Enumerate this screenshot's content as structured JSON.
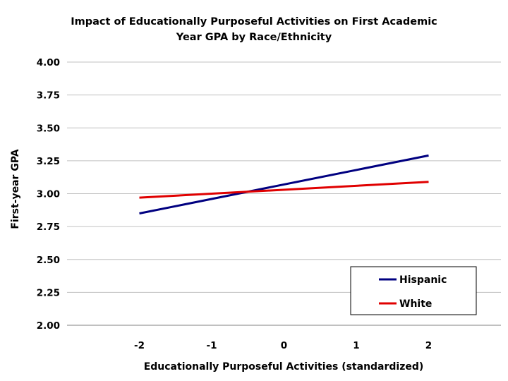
{
  "chart_data": {
    "type": "line",
    "title_lines": [
      "Impact of Educationally Purposeful Activities on First Academic",
      "Year GPA by Race/Ethnicity"
    ],
    "xlabel": "Educationally Purposeful Activities (standardized)",
    "ylabel": "First-year GPA",
    "x": [
      -2,
      2
    ],
    "x_ticks": [
      -2,
      -1,
      0,
      1,
      2
    ],
    "x_tick_labels": [
      "-2",
      "-1",
      "0",
      "1",
      "2"
    ],
    "y_ticks": [
      2.0,
      2.25,
      2.5,
      2.75,
      3.0,
      3.25,
      3.5,
      3.75,
      4.0
    ],
    "y_tick_labels": [
      "2.00",
      "2.25",
      "2.50",
      "2.75",
      "3.00",
      "3.25",
      "3.50",
      "3.75",
      "4.00"
    ],
    "ylim": [
      2.0,
      4.0
    ],
    "xlim": [
      -3,
      3
    ],
    "grid": true,
    "legend_position": "bottom-right",
    "series": [
      {
        "name": "Hispanic",
        "color": "#000080",
        "x": [
          -2,
          2
        ],
        "values": [
          2.85,
          3.29
        ]
      },
      {
        "name": "White",
        "color": "#e00000",
        "x": [
          -2,
          2
        ],
        "values": [
          2.97,
          3.09
        ]
      }
    ]
  }
}
